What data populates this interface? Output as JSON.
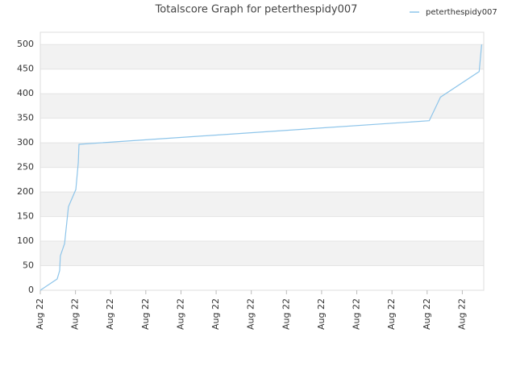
{
  "chart_data": {
    "type": "line",
    "title": "Totalscore Graph for peterthespidy007",
    "x": [
      0,
      0.48,
      0.55,
      0.57,
      0.69,
      0.8,
      1.01,
      1.08,
      1.1,
      11.06,
      11.38,
      12.48,
      12.55
    ],
    "series": [
      {
        "name": "peterthespidy007",
        "color": "#8ec5ea",
        "values": [
          0,
          23,
          40,
          70,
          95,
          170,
          205,
          260,
          297,
          345,
          393,
          445,
          500
        ]
      }
    ],
    "xlim": [
      0,
      12.61
    ],
    "xticks": [
      {
        "value": 0,
        "label": "Aug 22"
      },
      {
        "value": 1,
        "label": "Aug 22"
      },
      {
        "value": 2,
        "label": "Aug 22"
      },
      {
        "value": 3,
        "label": "Aug 22"
      },
      {
        "value": 4,
        "label": "Aug 22"
      },
      {
        "value": 5,
        "label": "Aug 22"
      },
      {
        "value": 6,
        "label": "Aug 22"
      },
      {
        "value": 7,
        "label": "Aug 22"
      },
      {
        "value": 8,
        "label": "Aug 22"
      },
      {
        "value": 9,
        "label": "Aug 22"
      },
      {
        "value": 10,
        "label": "Aug 22"
      },
      {
        "value": 11,
        "label": "Aug 22"
      },
      {
        "value": 12,
        "label": "Aug 22"
      }
    ],
    "ylim": [
      0,
      525
    ],
    "yticks": [
      0,
      50,
      100,
      150,
      200,
      250,
      300,
      350,
      400,
      450,
      500
    ],
    "grid": true,
    "legend": "top-right"
  }
}
